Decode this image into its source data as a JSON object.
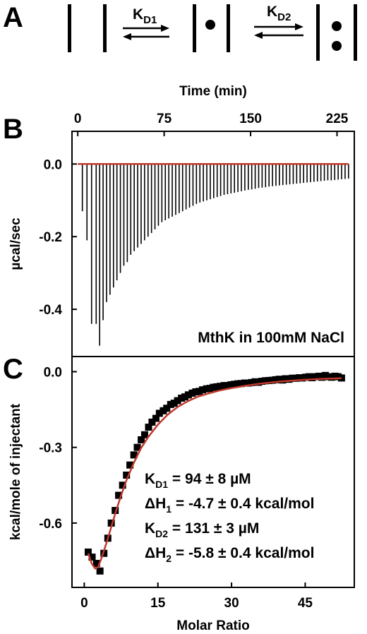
{
  "panel_labels": {
    "a": "A",
    "b": "B",
    "c": "C"
  },
  "scheme": {
    "k1_main": "K",
    "k1_sub": "D1",
    "k2_main": "K",
    "k2_sub": "D2"
  },
  "colors": {
    "fit_line": "#c0392b",
    "data": "#000000"
  },
  "chart_data": [
    {
      "id": "B",
      "type": "line",
      "xlabel": "Time (min)",
      "ylabel": "µcal/sec",
      "xlim": [
        -5,
        240
      ],
      "ylim": [
        -0.53,
        0.09
      ],
      "x_ticks": [
        0,
        75,
        150,
        225
      ],
      "y_ticks": [
        0.0,
        -0.2,
        -0.4
      ],
      "x_tick_labels": [
        "0",
        "75",
        "150",
        "225"
      ],
      "y_tick_labels": [
        "0.0",
        "-0.2",
        "-0.4"
      ],
      "x_axis_position": "top",
      "grid": false,
      "annotation": "MthK in 100mM NaCl",
      "baseline": 0.0,
      "baseline_color": "#c0392b",
      "injection_times": [
        4,
        8,
        12,
        16,
        19,
        22,
        25,
        28,
        31,
        34,
        37,
        40,
        43,
        46,
        49,
        52,
        55,
        58,
        61,
        64,
        67,
        70,
        73,
        76,
        79,
        82,
        85,
        88,
        91,
        94,
        97,
        100,
        103,
        106,
        109,
        112,
        115,
        118,
        121,
        124,
        127,
        130,
        133,
        136,
        139,
        142,
        145,
        148,
        151,
        154,
        157,
        160,
        163,
        166,
        169,
        172,
        175,
        178,
        181,
        184,
        187,
        190,
        193,
        196,
        199,
        202,
        205,
        208,
        211,
        214,
        217,
        220,
        223,
        226,
        229,
        232,
        235
      ],
      "peak_minima": [
        -0.13,
        -0.21,
        -0.44,
        -0.44,
        -0.5,
        -0.43,
        -0.38,
        -0.36,
        -0.34,
        -0.32,
        -0.3,
        -0.28,
        -0.27,
        -0.25,
        -0.24,
        -0.23,
        -0.22,
        -0.21,
        -0.2,
        -0.19,
        -0.18,
        -0.17,
        -0.16,
        -0.155,
        -0.15,
        -0.145,
        -0.14,
        -0.135,
        -0.13,
        -0.125,
        -0.12,
        -0.115,
        -0.11,
        -0.106,
        -0.103,
        -0.1,
        -0.097,
        -0.094,
        -0.091,
        -0.088,
        -0.085,
        -0.083,
        -0.081,
        -0.079,
        -0.077,
        -0.075,
        -0.073,
        -0.071,
        -0.07,
        -0.068,
        -0.066,
        -0.065,
        -0.064,
        -0.062,
        -0.061,
        -0.06,
        -0.059,
        -0.058,
        -0.057,
        -0.056,
        -0.055,
        -0.054,
        -0.053,
        -0.052,
        -0.051,
        -0.05,
        -0.049,
        -0.048,
        -0.047,
        -0.046,
        -0.045,
        -0.045,
        -0.044,
        -0.043,
        -0.042,
        -0.041,
        -0.04
      ]
    },
    {
      "id": "C",
      "type": "scatter",
      "xlabel": "Molar Ratio",
      "ylabel": "kcal/mole of injectant",
      "xlim": [
        -2.5,
        55
      ],
      "ylim": [
        -0.855,
        0.06
      ],
      "x_ticks": [
        0,
        15,
        30,
        45
      ],
      "y_ticks": [
        0.0,
        -0.3,
        -0.6
      ],
      "x_tick_labels": [
        "0",
        "15",
        "30",
        "45"
      ],
      "y_tick_labels": [
        "0.0",
        "-0.3",
        "-0.6"
      ],
      "grid": false,
      "x": [
        0.8,
        1.6,
        2.5,
        3.2,
        4.0,
        4.8,
        5.5,
        6.3,
        7.0,
        7.8,
        8.6,
        9.3,
        10.1,
        10.8,
        11.6,
        12.3,
        13.1,
        13.8,
        14.6,
        15.3,
        16.1,
        16.8,
        17.6,
        18.3,
        19.0,
        19.8,
        20.5,
        21.2,
        22.0,
        22.7,
        23.4,
        24.1,
        24.9,
        25.6,
        26.3,
        27.0,
        27.7,
        28.5,
        29.2,
        29.9,
        30.6,
        31.3,
        32.0,
        32.7,
        33.4,
        34.1,
        34.8,
        35.5,
        36.2,
        36.9,
        37.6,
        38.3,
        39.0,
        39.7,
        40.4,
        41.0,
        41.7,
        42.4,
        43.1,
        43.8,
        44.4,
        45.1,
        45.8,
        46.4,
        47.1,
        47.8,
        48.4,
        49.1,
        49.8,
        50.4,
        51.1,
        51.7,
        52.4
      ],
      "y": [
        -0.715,
        -0.735,
        -0.76,
        -0.79,
        -0.72,
        -0.66,
        -0.6,
        -0.55,
        -0.49,
        -0.45,
        -0.41,
        -0.37,
        -0.33,
        -0.3,
        -0.27,
        -0.25,
        -0.22,
        -0.2,
        -0.185,
        -0.165,
        -0.155,
        -0.145,
        -0.13,
        -0.125,
        -0.115,
        -0.105,
        -0.1,
        -0.092,
        -0.085,
        -0.08,
        -0.078,
        -0.072,
        -0.068,
        -0.066,
        -0.062,
        -0.06,
        -0.058,
        -0.055,
        -0.055,
        -0.052,
        -0.05,
        -0.048,
        -0.047,
        -0.045,
        -0.045,
        -0.043,
        -0.04,
        -0.042,
        -0.038,
        -0.036,
        -0.035,
        -0.034,
        -0.032,
        -0.03,
        -0.033,
        -0.028,
        -0.03,
        -0.026,
        -0.026,
        -0.024,
        -0.025,
        -0.022,
        -0.02,
        -0.024,
        -0.02,
        -0.018,
        -0.022,
        -0.015,
        -0.02,
        -0.022,
        -0.018,
        -0.02,
        -0.025
      ],
      "fit": {
        "name": "",
        "color": "#c0392b",
        "x": [
          0.8,
          1.5,
          2.2,
          2.8,
          3.5,
          4.5,
          5.5,
          6.5,
          7.5,
          8.5,
          10,
          11.5,
          13,
          15,
          17,
          19,
          21,
          23,
          25,
          27.5,
          30,
          33,
          36,
          40,
          44,
          48,
          52.4
        ],
        "y": [
          -0.72,
          -0.76,
          -0.78,
          -0.775,
          -0.74,
          -0.68,
          -0.615,
          -0.55,
          -0.49,
          -0.435,
          -0.365,
          -0.305,
          -0.26,
          -0.21,
          -0.17,
          -0.14,
          -0.118,
          -0.1,
          -0.088,
          -0.075,
          -0.065,
          -0.055,
          -0.047,
          -0.039,
          -0.033,
          -0.029,
          -0.026
        ]
      },
      "annotations": [
        {
          "main": "K",
          "sub": "D1",
          "rest": " = 94 ± 8 µM"
        },
        {
          "main": "ΔH",
          "sub": "1",
          "rest": " = -4.7 ± 0.4 kcal/mol"
        },
        {
          "main": "K",
          "sub": "D2",
          "rest": " = 131 ± 3 µM"
        },
        {
          "main": "ΔH",
          "sub": "2",
          "rest": " = -5.8 ± 0.4 kcal/mol"
        }
      ]
    }
  ]
}
